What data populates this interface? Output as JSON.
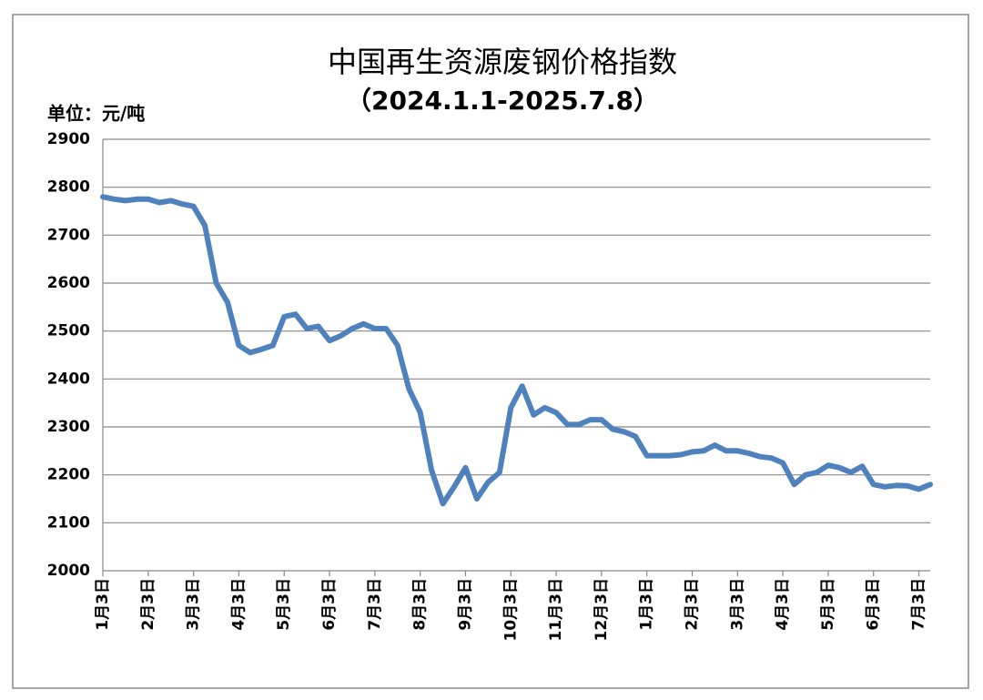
{
  "chart_data": {
    "type": "line",
    "title": "中国再生资源废钢价格指数",
    "subtitle": "（2024.1.1-2025.7.8）",
    "y_label": "单位：元/吨",
    "categories": [
      "1月3日",
      null,
      null,
      null,
      "2月3日",
      null,
      null,
      null,
      "3月3日",
      null,
      null,
      null,
      "4月3日",
      null,
      null,
      null,
      "5月3日",
      null,
      null,
      null,
      "6月3日",
      null,
      null,
      null,
      "7月3日",
      null,
      null,
      null,
      "8月3日",
      null,
      null,
      null,
      "9月3日",
      null,
      null,
      null,
      "10月3日",
      null,
      null,
      null,
      "11月3日",
      null,
      null,
      null,
      "12月3日",
      null,
      null,
      null,
      "1月3日",
      null,
      null,
      null,
      "2月3日",
      null,
      null,
      null,
      "3月3日",
      null,
      null,
      null,
      "4月3日",
      null,
      null,
      null,
      "5月3日",
      null,
      null,
      null,
      "6月3日",
      null,
      null,
      null,
      "7月3日",
      null
    ],
    "series": [
      {
        "name": "废钢价格指数",
        "color": "#4f81bd",
        "values": [
          2780,
          2775,
          2772,
          2775,
          2775,
          2768,
          2772,
          2765,
          2760,
          2720,
          2600,
          2560,
          2470,
          2455,
          2462,
          2470,
          2530,
          2535,
          2505,
          2510,
          2480,
          2490,
          2505,
          2515,
          2505,
          2505,
          2470,
          2380,
          2330,
          2210,
          2140,
          2175,
          2215,
          2150,
          2185,
          2205,
          2340,
          2385,
          2325,
          2340,
          2330,
          2305,
          2305,
          2315,
          2315,
          2295,
          2290,
          2280,
          2240,
          2240,
          2240,
          2242,
          2248,
          2250,
          2262,
          2250,
          2250,
          2245,
          2238,
          2235,
          2225,
          2180,
          2200,
          2205,
          2220,
          2215,
          2205,
          2218,
          2180,
          2175,
          2178,
          2177,
          2170,
          2180
        ]
      }
    ],
    "ylim": [
      2000,
      2900
    ],
    "yticks": [
      2000,
      2100,
      2200,
      2300,
      2400,
      2500,
      2600,
      2700,
      2800,
      2900
    ],
    "grid": true
  }
}
